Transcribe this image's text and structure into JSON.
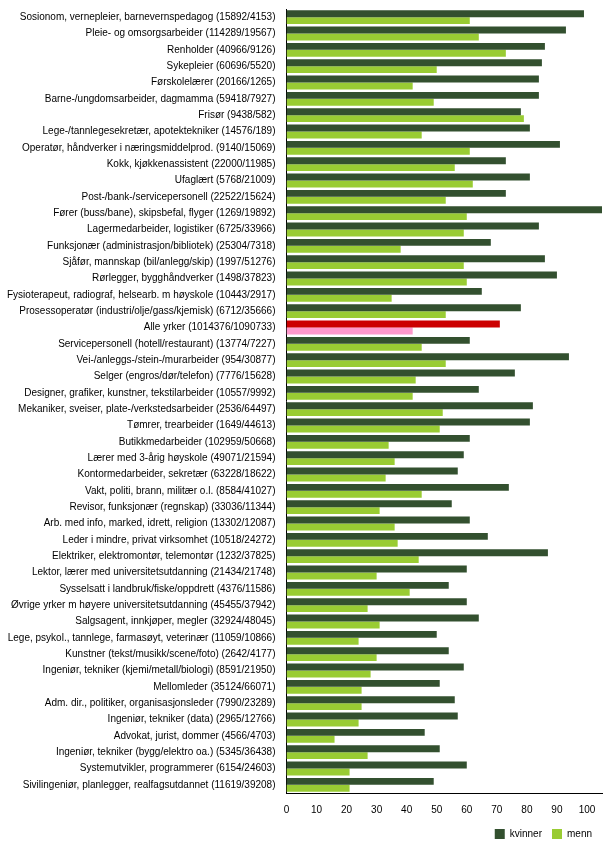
{
  "chart_data": {
    "type": "bar",
    "orientation": "horizontal",
    "grid": false,
    "legend": "bottom",
    "categories": [
      "Sosionom, vernepleier, barnevernspedagog (15892/4153)",
      "Pleie- og omsorgsarbeider (114289/19567)",
      "Renholder (40966/9126)",
      "Sykepleier (60696/5520)",
      "Førskolelærer (20166/1265)",
      "Barne-/ungdomsarbeider, dagmamma (59418/7927)",
      "Frisør (9438/582)",
      "Lege-/tannlegesekretær, apotektekniker (14576/189)",
      "Operatør, håndverker i næringsmiddelprod. (9140/15069)",
      "Kokk, kjøkkenassistent (22000/11985)",
      "Ufaglært (5768/21009)",
      "Post-/bank-/servicepersonell (22522/15624)",
      "Fører (buss/bane), skipsbefal, flyger (1269/19892)",
      "Lagermedarbeider, logistiker (6725/33966)",
      "Funksjonær (administrasjon/bibliotek) (25304/7318)",
      "Sjåfør, mannskap (bil/anlegg/skip) (1997/51276)",
      "Rørlegger, bygghåndverker (1498/37823)",
      "Fysioterapeut, radiograf, helsearb. m høyskole (10443/2917)",
      "Prosessoperatør (industri/olje/gass/kjemisk) (6712/35666)",
      "Alle yrker (1014376/1090733)",
      "Servicepersonell (hotell/restaurant) (13774/7227)",
      "Vei-/anleggs-/stein-/murarbeider (954/30877)",
      "Selger (engros/dør/telefon) (7776/15628)",
      "Designer, grafiker, kunstner, tekstilarbeider (10557/9992)",
      "Mekaniker, sveiser, plate-/verkstedsarbeider (2536/64497)",
      "Tømrer, trearbeider (1649/44613)",
      "Butikkmedarbeider (102959/50668)",
      "Lærer med 3-årig høyskole (49071/21594)",
      "Kontormedarbeider, sekretær (63228/18622)",
      "Vakt, politi, brann, militær o.l. (8584/41027)",
      "Revisor, funksjonær (regnskap) (33036/11344)",
      "Arb. med info, marked, idrett, religion (13302/12087)",
      "Leder i mindre, privat virksomhet (10518/24272)",
      "Elektriker, elektromontør, telemontør (1232/37825)",
      "Lektor, lærer med universitetsutdanning (21434/21748)",
      "Sysselsatt i landbruk/fiske/oppdrett (4376/11586)",
      "Øvrige yrker m høyere universitetsutdanning (45455/37942)",
      "Salgsagent, innkjøper, megler (32924/48045)",
      "Lege, psykol., tannlege, farmasøyt, veterinær (11059/10866)",
      "Kunstner (tekst/musikk/scene/foto) (2642/4177)",
      "Ingeniør, tekniker (kjemi/metall/biologi) (8591/21950)",
      "Mellomleder (35124/66071)",
      "Adm. dir., politiker, organisasjonsleder (7990/23289)",
      "Ingeniør, tekniker (data) (2965/12766)",
      "Advokat, jurist, dommer (4566/4703)",
      "Ingeniør, tekniker (bygg/elektro oa.) (5345/36438)",
      "Systemutvikler, programmerer (6154/24603)",
      "Sivilingeniør, planlegger, realfagsutdannet (11619/39208)"
    ],
    "series": [
      {
        "name": "kvinner",
        "color": "#33502f",
        "values": [
          99,
          93,
          86,
          85,
          84,
          84,
          78,
          81,
          91,
          73,
          81,
          73,
          105,
          84,
          68,
          86,
          90,
          65,
          78,
          71,
          61,
          94,
          76,
          64,
          82,
          81,
          61,
          59,
          57,
          74,
          55,
          61,
          67,
          87,
          60,
          54,
          60,
          64,
          50,
          54,
          59,
          51,
          56,
          57,
          46,
          51,
          60,
          49
        ],
        "colors": [
          "#33502f",
          "#33502f",
          "#33502f",
          "#33502f",
          "#33502f",
          "#33502f",
          "#33502f",
          "#33502f",
          "#33502f",
          "#33502f",
          "#33502f",
          "#33502f",
          "#33502f",
          "#33502f",
          "#33502f",
          "#33502f",
          "#33502f",
          "#33502f",
          "#33502f",
          "#cc0000",
          "#33502f",
          "#33502f",
          "#33502f",
          "#33502f",
          "#33502f",
          "#33502f",
          "#33502f",
          "#33502f",
          "#33502f",
          "#33502f",
          "#33502f",
          "#33502f",
          "#33502f",
          "#33502f",
          "#33502f",
          "#33502f",
          "#33502f",
          "#33502f",
          "#33502f",
          "#33502f",
          "#33502f",
          "#33502f",
          "#33502f",
          "#33502f",
          "#33502f",
          "#33502f",
          "#33502f",
          "#33502f"
        ]
      },
      {
        "name": "menn",
        "color": "#99cc33",
        "values": [
          61,
          64,
          73,
          50,
          42,
          49,
          79,
          45,
          61,
          56,
          62,
          53,
          60,
          59,
          38,
          59,
          60,
          35,
          53,
          42,
          45,
          53,
          43,
          42,
          52,
          51,
          34,
          36,
          33,
          45,
          31,
          36,
          37,
          44,
          30,
          41,
          27,
          31,
          24,
          30,
          28,
          25,
          25,
          24,
          16,
          27,
          21,
          21
        ],
        "colors": [
          "#99cc33",
          "#99cc33",
          "#99cc33",
          "#99cc33",
          "#99cc33",
          "#99cc33",
          "#99cc33",
          "#99cc33",
          "#99cc33",
          "#99cc33",
          "#99cc33",
          "#99cc33",
          "#99cc33",
          "#99cc33",
          "#99cc33",
          "#99cc33",
          "#99cc33",
          "#99cc33",
          "#99cc33",
          "#ff99cc",
          "#99cc33",
          "#99cc33",
          "#99cc33",
          "#99cc33",
          "#99cc33",
          "#99cc33",
          "#99cc33",
          "#99cc33",
          "#99cc33",
          "#99cc33",
          "#99cc33",
          "#99cc33",
          "#99cc33",
          "#99cc33",
          "#99cc33",
          "#99cc33",
          "#99cc33",
          "#99cc33",
          "#99cc33",
          "#99cc33",
          "#99cc33",
          "#99cc33",
          "#99cc33",
          "#99cc33",
          "#99cc33",
          "#99cc33",
          "#99cc33",
          "#99cc33"
        ]
      }
    ],
    "xlim": [
      0,
      105
    ],
    "xticks": [
      0,
      10,
      20,
      30,
      40,
      50,
      60,
      70,
      80,
      90,
      100
    ]
  }
}
